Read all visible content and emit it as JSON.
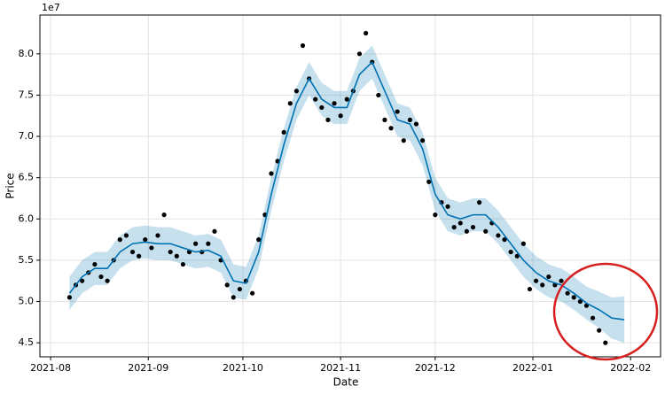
{
  "chart_data": {
    "type": "line",
    "x_label": "Date",
    "y_label": "Price",
    "y_offset_label": "1e7",
    "grid": true,
    "xlim": [
      -3.4,
      193.5
    ],
    "xticks": [
      {
        "value": 0,
        "label": "2021-08"
      },
      {
        "value": 31,
        "label": "2021-09"
      },
      {
        "value": 61,
        "label": "2021-10"
      },
      {
        "value": 92,
        "label": "2021-11"
      },
      {
        "value": 122,
        "label": "2021-12"
      },
      {
        "value": 153,
        "label": "2022-01"
      },
      {
        "value": 184,
        "label": "2022-02"
      }
    ],
    "ylim": [
      4.33,
      8.47
    ],
    "yticks": [
      4.5,
      {
        "value": 5,
        "label": "5.0"
      },
      5.5,
      {
        "value": 6,
        "label": "6.0"
      },
      6.5,
      {
        "value": 7,
        "label": "7.0"
      },
      7.5,
      {
        "value": 8,
        "label": "8.0"
      }
    ],
    "observed": {
      "color": "#000000",
      "x": [
        6,
        8,
        10,
        12,
        14,
        16,
        18,
        20,
        22,
        24,
        26,
        28,
        30,
        32,
        34,
        36,
        38,
        40,
        42,
        44,
        46,
        48,
        50,
        52,
        54,
        56,
        58,
        60,
        62,
        64,
        66,
        68,
        70,
        72,
        74,
        76,
        78,
        80,
        82,
        84,
        86,
        88,
        90,
        92,
        94,
        96,
        98,
        100,
        102,
        104,
        106,
        108,
        110,
        112,
        114,
        116,
        118,
        120,
        122,
        124,
        126,
        128,
        130,
        132,
        134,
        136,
        138,
        140,
        142,
        144,
        146,
        148,
        150,
        152,
        154,
        156,
        158,
        160,
        162,
        164,
        166,
        168,
        170,
        172,
        174,
        176
      ],
      "values": [
        5.05,
        5.2,
        5.25,
        5.35,
        5.45,
        5.3,
        5.25,
        5.5,
        5.75,
        5.8,
        5.6,
        5.55,
        5.75,
        5.65,
        5.8,
        6.05,
        5.6,
        5.55,
        5.45,
        5.6,
        5.7,
        5.6,
        5.7,
        5.85,
        5.5,
        5.2,
        5.05,
        5.15,
        5.25,
        5.1,
        5.75,
        6.05,
        6.55,
        6.7,
        7.05,
        7.4,
        7.55,
        8.1,
        7.7,
        7.45,
        7.35,
        7.2,
        7.4,
        7.25,
        7.45,
        7.55,
        8.0,
        8.25,
        7.9,
        7.5,
        7.2,
        7.1,
        7.3,
        6.95,
        7.2,
        7.15,
        6.95,
        6.45,
        6.05,
        6.2,
        6.15,
        5.9,
        5.95,
        5.85,
        5.9,
        6.2,
        5.85,
        5.95,
        5.8,
        5.75,
        5.6,
        5.55,
        5.7,
        5.15,
        5.25,
        5.2,
        5.3,
        5.2,
        5.25,
        5.1,
        5.05,
        5.0,
        4.95,
        4.8,
        4.65,
        4.5
      ]
    },
    "forecast": {
      "color": "#0072B2",
      "band_color": "#0072B2",
      "x": [
        6,
        10,
        14,
        18,
        22,
        26,
        30,
        34,
        38,
        42,
        46,
        50,
        54,
        58,
        62,
        66,
        70,
        74,
        78,
        82,
        86,
        90,
        94,
        98,
        102,
        106,
        110,
        114,
        118,
        122,
        126,
        130,
        134,
        138,
        142,
        146,
        150,
        154,
        158,
        162,
        166,
        170,
        174,
        178,
        182
      ],
      "values": [
        5.1,
        5.3,
        5.4,
        5.4,
        5.6,
        5.7,
        5.72,
        5.7,
        5.7,
        5.65,
        5.6,
        5.62,
        5.55,
        5.25,
        5.22,
        5.6,
        6.3,
        6.9,
        7.4,
        7.7,
        7.45,
        7.35,
        7.35,
        7.75,
        7.9,
        7.55,
        7.2,
        7.15,
        6.85,
        6.3,
        6.05,
        6.0,
        6.05,
        6.05,
        5.9,
        5.7,
        5.5,
        5.35,
        5.25,
        5.2,
        5.1,
        4.98,
        4.9,
        4.8,
        4.78
      ],
      "lower": [
        4.9,
        5.1,
        5.2,
        5.2,
        5.4,
        5.5,
        5.52,
        5.5,
        5.5,
        5.45,
        5.4,
        5.42,
        5.35,
        5.05,
        5.02,
        5.4,
        6.1,
        6.7,
        7.2,
        7.5,
        7.25,
        7.15,
        7.15,
        7.55,
        7.7,
        7.35,
        7.0,
        6.95,
        6.65,
        6.1,
        5.85,
        5.8,
        5.85,
        5.85,
        5.7,
        5.5,
        5.3,
        5.15,
        5.05,
        5.0,
        4.9,
        4.78,
        4.68,
        4.55,
        4.5
      ],
      "upper": [
        5.3,
        5.5,
        5.6,
        5.6,
        5.8,
        5.9,
        5.92,
        5.9,
        5.9,
        5.85,
        5.8,
        5.82,
        5.75,
        5.45,
        5.42,
        5.8,
        6.5,
        7.1,
        7.6,
        7.9,
        7.65,
        7.55,
        7.55,
        7.95,
        8.1,
        7.75,
        7.4,
        7.35,
        7.05,
        6.5,
        6.25,
        6.2,
        6.25,
        6.25,
        6.1,
        5.9,
        5.7,
        5.55,
        5.45,
        5.4,
        5.3,
        5.18,
        5.12,
        5.05,
        5.06
      ]
    }
  }
}
